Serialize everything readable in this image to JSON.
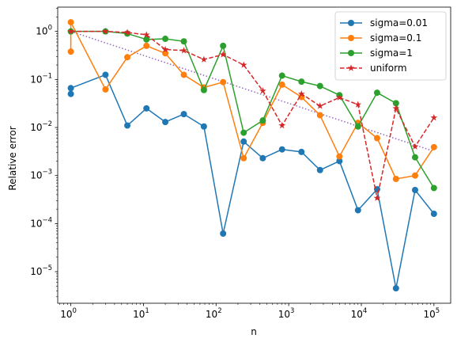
{
  "chart_data": {
    "type": "line",
    "title": "",
    "xlabel": "n",
    "ylabel": "Relative error",
    "xscale": "log",
    "yscale": "log",
    "xlim": [
      0.66,
      170000
    ],
    "ylim": [
      2.2e-06,
      3.2
    ],
    "grid": false,
    "legend_position": "top-right",
    "x_ticks": [
      {
        "value": 1,
        "base": "10",
        "exp": "0"
      },
      {
        "value": 10,
        "base": "10",
        "exp": "1"
      },
      {
        "value": 100,
        "base": "10",
        "exp": "2"
      },
      {
        "value": 1000,
        "base": "10",
        "exp": "3"
      },
      {
        "value": 10000,
        "base": "10",
        "exp": "4"
      },
      {
        "value": 100000,
        "base": "10",
        "exp": "5"
      }
    ],
    "y_ticks": [
      {
        "value": 1e-05,
        "base": "10",
        "exp": "−5"
      },
      {
        "value": 0.0001,
        "base": "10",
        "exp": "−4"
      },
      {
        "value": 0.001,
        "base": "10",
        "exp": "−3"
      },
      {
        "value": 0.01,
        "base": "10",
        "exp": "−2"
      },
      {
        "value": 0.1,
        "base": "10",
        "exp": "−1"
      },
      {
        "value": 1,
        "base": "10",
        "exp": "0"
      }
    ],
    "series": [
      {
        "name": "sigma=0.01",
        "color": "#1f77b4",
        "linestyle": "solid",
        "marker": "circle",
        "x": [
          1,
          1,
          3,
          6,
          11,
          20,
          36,
          68,
          125,
          240,
          440,
          810,
          1500,
          2700,
          5000,
          9000,
          16500,
          30000,
          55000,
          100000
        ],
        "y": [
          0.05,
          0.066,
          0.125,
          0.011,
          0.025,
          0.013,
          0.019,
          0.0105,
          6.2e-05,
          0.0051,
          0.0023,
          0.0035,
          0.0031,
          0.0013,
          0.002,
          0.00019,
          0.00052,
          4.5e-06,
          0.0005,
          0.00016
        ]
      },
      {
        "name": "sigma=0.1",
        "color": "#ff7f0e",
        "linestyle": "solid",
        "marker": "circle",
        "x": [
          1,
          1,
          3,
          6,
          11,
          20,
          36,
          68,
          125,
          240,
          440,
          810,
          1500,
          2700,
          5000,
          9000,
          16500,
          30000,
          55000,
          100000
        ],
        "y": [
          0.38,
          1.55,
          0.062,
          0.29,
          0.5,
          0.35,
          0.125,
          0.068,
          0.088,
          0.0023,
          0.0125,
          0.078,
          0.043,
          0.018,
          0.0025,
          0.0125,
          0.006,
          0.00085,
          0.001,
          0.0039
        ]
      },
      {
        "name": "sigma=1",
        "color": "#2ca02c",
        "linestyle": "solid",
        "marker": "circle",
        "x": [
          1,
          3,
          6,
          11,
          20,
          36,
          68,
          125,
          240,
          440,
          810,
          1500,
          2700,
          5000,
          9000,
          16500,
          30000,
          55000,
          100000
        ],
        "y": [
          1.0,
          1.0,
          0.9,
          0.68,
          0.7,
          0.62,
          0.06,
          0.5,
          0.0078,
          0.014,
          0.12,
          0.09,
          0.073,
          0.047,
          0.0105,
          0.053,
          0.032,
          0.0024,
          0.00055
        ]
      },
      {
        "name": "uniform",
        "color": "#d62728",
        "linestyle": "dashed",
        "marker": "star",
        "x": [
          1,
          3,
          6,
          11,
          20,
          36,
          68,
          125,
          240,
          440,
          810,
          1500,
          2700,
          5000,
          9000,
          16500,
          30000,
          55000,
          100000
        ],
        "y": [
          1.0,
          1.0,
          0.95,
          0.85,
          0.42,
          0.4,
          0.26,
          0.33,
          0.2,
          0.058,
          0.011,
          0.05,
          0.028,
          0.042,
          0.03,
          0.00034,
          0.025,
          0.004,
          0.016
        ]
      },
      {
        "color": "#9467bd",
        "linestyle": "dotted",
        "marker": "none",
        "x": [
          1,
          100000
        ],
        "y": [
          1.0,
          0.0032
        ]
      }
    ]
  }
}
